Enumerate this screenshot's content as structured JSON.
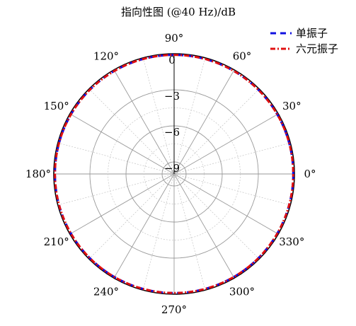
{
  "chart_data": {
    "type": "polar-line",
    "title": "指向性图 (@40 Hz)/dB",
    "angle_ticks": [
      {
        "deg": 0,
        "label": "0°"
      },
      {
        "deg": 30,
        "label": "30°"
      },
      {
        "deg": 60,
        "label": "60°"
      },
      {
        "deg": 90,
        "label": "90°"
      },
      {
        "deg": 120,
        "label": "120°"
      },
      {
        "deg": 150,
        "label": "150°"
      },
      {
        "deg": 180,
        "label": "180°"
      },
      {
        "deg": 210,
        "label": "210°"
      },
      {
        "deg": 240,
        "label": "240°"
      },
      {
        "deg": 270,
        "label": "270°"
      },
      {
        "deg": 300,
        "label": "300°"
      },
      {
        "deg": 330,
        "label": "330°"
      }
    ],
    "radial_ticks": [
      {
        "value": 0,
        "label": "0"
      },
      {
        "value": -3,
        "label": "−3"
      },
      {
        "value": -6,
        "label": "−6"
      },
      {
        "value": -9,
        "label": "−9"
      }
    ],
    "rlim": [
      -10,
      0
    ],
    "angle_grid_step_deg": 15,
    "grid": true,
    "legend_position": "top-right",
    "series": [
      {
        "name": "单振子",
        "color": "#1010e0",
        "dash": "8,6",
        "value_db": -0.1
      },
      {
        "name": "六元振子",
        "color": "#e01010",
        "dash": "7,3,2,3",
        "value_db": -0.1
      }
    ]
  }
}
